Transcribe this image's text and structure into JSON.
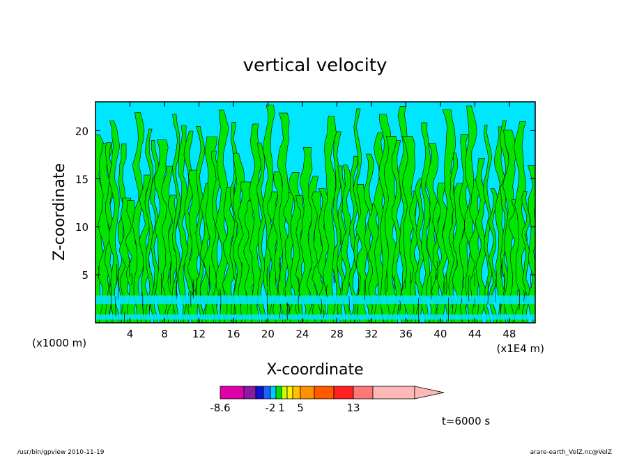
{
  "chart_data": {
    "type": "heatmap",
    "title": "vertical velocity",
    "xlabel": "X-coordinate",
    "ylabel": "Z-coordinate",
    "x_unit_left": "(x1000 m)",
    "x_unit_right": "(x1E4 m)",
    "xlim": [
      0,
      51
    ],
    "ylim": [
      0,
      23
    ],
    "xticks": [
      4,
      8,
      12,
      16,
      20,
      24,
      28,
      32,
      36,
      40,
      44,
      48
    ],
    "yticks": [
      5,
      10,
      15,
      20
    ],
    "time_label": "t=6000 s",
    "colorbar": {
      "labels": [
        {
          "text": "-8.6",
          "index": 0
        },
        {
          "text": "-2",
          "index": 4
        },
        {
          "text": "1",
          "index": 6
        },
        {
          "text": "5",
          "index": 9
        },
        {
          "text": "13",
          "index": 12
        }
      ],
      "colors": [
        "#e000a8",
        "#8a1aa0",
        "#1010d0",
        "#2060ff",
        "#00c8ff",
        "#00e000",
        "#c8ff00",
        "#fff000",
        "#ffc000",
        "#ff9000",
        "#ff5a00",
        "#ff2020",
        "#ff7878",
        "#ffb8b8"
      ],
      "extend_color": "#ffb8b8"
    },
    "field_colors": {
      "negative": "#00e6ff",
      "positive": "#00e600"
    }
  },
  "footer": {
    "left": "/usr/bin/gpview   2010-11-19",
    "right": "arare-earth_VelZ.nc@VelZ"
  }
}
